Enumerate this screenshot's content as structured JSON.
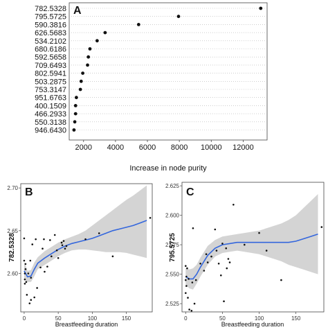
{
  "chart_data": [
    {
      "type": "scatter",
      "panel_label": "A",
      "xlabel": "Increase in node purity",
      "ylabel": "",
      "xlim": [
        1100,
        13500
      ],
      "xticks": [
        2000,
        4000,
        6000,
        8000,
        10000,
        12000
      ],
      "grid": false,
      "categories": [
        "782.5328",
        "795.5725",
        "590.3816",
        "626.5683",
        "534.2102",
        "680.6186",
        "592.5658",
        "709.6493",
        "802.5941",
        "503.2875",
        "753.3147",
        "951.6763",
        "400.1509",
        "466.2933",
        "550.3138",
        "946.6430"
      ],
      "values": [
        13100,
        7950,
        5450,
        3350,
        2850,
        2400,
        2300,
        2250,
        1950,
        1850,
        1800,
        1550,
        1500,
        1500,
        1450,
        1400
      ]
    },
    {
      "type": "scatter",
      "panel_label": "B",
      "xlabel": "Breastfeeding duration",
      "ylabel": "782.5328",
      "xlim": [
        -5,
        188
      ],
      "ylim": [
        2.555,
        2.705
      ],
      "xticks": [
        0,
        50,
        100,
        150
      ],
      "yticks": [
        2.6,
        2.65,
        2.7
      ],
      "ytick_labels": [
        "2.60",
        "2.65",
        "2.70"
      ],
      "grid": false,
      "points": [
        [
          0,
          2.641
        ],
        [
          0,
          2.615
        ],
        [
          1,
          2.6
        ],
        [
          1,
          2.593
        ],
        [
          1,
          2.588
        ],
        [
          2,
          2.611
        ],
        [
          2,
          2.605
        ],
        [
          3,
          2.59
        ],
        [
          4,
          2.575
        ],
        [
          6,
          2.6
        ],
        [
          8,
          2.565
        ],
        [
          9,
          2.615
        ],
        [
          10,
          2.595
        ],
        [
          10,
          2.569
        ],
        [
          12,
          2.634
        ],
        [
          15,
          2.572
        ],
        [
          17,
          2.64
        ],
        [
          19,
          2.583
        ],
        [
          24,
          2.607
        ],
        [
          27,
          2.629
        ],
        [
          29,
          2.64
        ],
        [
          30,
          2.602
        ],
        [
          34,
          2.608
        ],
        [
          38,
          2.639
        ],
        [
          40,
          2.62
        ],
        [
          45,
          2.645
        ],
        [
          48,
          2.627
        ],
        [
          50,
          2.618
        ],
        [
          55,
          2.636
        ],
        [
          56,
          2.633
        ],
        [
          58,
          2.638
        ],
        [
          60,
          2.629
        ],
        [
          62,
          2.632
        ],
        [
          90,
          2.64
        ],
        [
          110,
          2.647
        ],
        [
          130,
          2.62
        ],
        [
          185,
          2.665
        ]
      ],
      "smooth": [
        [
          0,
          2.603
        ],
        [
          5,
          2.596
        ],
        [
          10,
          2.597
        ],
        [
          15,
          2.605
        ],
        [
          20,
          2.612
        ],
        [
          30,
          2.618
        ],
        [
          40,
          2.623
        ],
        [
          50,
          2.628
        ],
        [
          60,
          2.632
        ],
        [
          70,
          2.635
        ],
        [
          80,
          2.637
        ],
        [
          90,
          2.639
        ],
        [
          100,
          2.641
        ],
        [
          110,
          2.644
        ],
        [
          120,
          2.647
        ],
        [
          130,
          2.65
        ],
        [
          140,
          2.652
        ],
        [
          150,
          2.654
        ],
        [
          160,
          2.656
        ],
        [
          170,
          2.659
        ],
        [
          180,
          2.662
        ]
      ],
      "ci_lower": [
        [
          0,
          2.593
        ],
        [
          5,
          2.59
        ],
        [
          10,
          2.59
        ],
        [
          15,
          2.597
        ],
        [
          20,
          2.605
        ],
        [
          30,
          2.61
        ],
        [
          40,
          2.615
        ],
        [
          50,
          2.62
        ],
        [
          60,
          2.624
        ],
        [
          70,
          2.627
        ],
        [
          80,
          2.628
        ],
        [
          90,
          2.628
        ],
        [
          100,
          2.627
        ],
        [
          110,
          2.626
        ],
        [
          120,
          2.625
        ],
        [
          130,
          2.625
        ],
        [
          140,
          2.625
        ],
        [
          150,
          2.624
        ],
        [
          160,
          2.622
        ],
        [
          170,
          2.62
        ],
        [
          180,
          2.618
        ]
      ],
      "ci_upper": [
        [
          0,
          2.614
        ],
        [
          5,
          2.603
        ],
        [
          10,
          2.604
        ],
        [
          15,
          2.613
        ],
        [
          20,
          2.619
        ],
        [
          30,
          2.626
        ],
        [
          40,
          2.631
        ],
        [
          50,
          2.636
        ],
        [
          60,
          2.64
        ],
        [
          70,
          2.643
        ],
        [
          80,
          2.646
        ],
        [
          90,
          2.65
        ],
        [
          100,
          2.656
        ],
        [
          110,
          2.662
        ],
        [
          120,
          2.668
        ],
        [
          130,
          2.674
        ],
        [
          140,
          2.68
        ],
        [
          150,
          2.686
        ],
        [
          160,
          2.691
        ],
        [
          170,
          2.697
        ],
        [
          180,
          2.703
        ]
      ]
    },
    {
      "type": "scatter",
      "panel_label": "C",
      "xlabel": "Breastfeeding duration",
      "ylabel": "795.5725",
      "xlim": [
        -5,
        188
      ],
      "ylim": [
        2.518,
        2.628
      ],
      "xticks": [
        0,
        50,
        100,
        150
      ],
      "yticks": [
        2.525,
        2.55,
        2.575,
        2.6,
        2.625
      ],
      "ytick_labels": [
        "2.525",
        "2.550",
        "2.575",
        "2.600",
        "2.625"
      ],
      "grid": false,
      "points": [
        [
          0,
          2.557
        ],
        [
          0,
          2.545
        ],
        [
          0,
          2.534
        ],
        [
          1,
          2.548
        ],
        [
          1,
          2.54
        ],
        [
          2,
          2.555
        ],
        [
          3,
          2.53
        ],
        [
          4,
          2.546
        ],
        [
          5,
          2.52
        ],
        [
          8,
          2.519
        ],
        [
          9,
          2.543
        ],
        [
          10,
          2.589
        ],
        [
          12,
          2.525
        ],
        [
          14,
          2.545
        ],
        [
          20,
          2.559
        ],
        [
          25,
          2.553
        ],
        [
          28,
          2.567
        ],
        [
          30,
          2.56
        ],
        [
          35,
          2.565
        ],
        [
          40,
          2.588
        ],
        [
          42,
          2.57
        ],
        [
          45,
          2.559
        ],
        [
          48,
          2.549
        ],
        [
          50,
          2.576
        ],
        [
          52,
          2.527
        ],
        [
          55,
          2.572
        ],
        [
          56,
          2.555
        ],
        [
          58,
          2.563
        ],
        [
          60,
          2.56
        ],
        [
          65,
          2.609
        ],
        [
          80,
          2.575
        ],
        [
          100,
          2.585
        ],
        [
          110,
          2.57
        ],
        [
          130,
          2.545
        ],
        [
          185,
          2.59
        ]
      ],
      "smooth": [
        [
          0,
          2.548
        ],
        [
          5,
          2.546
        ],
        [
          10,
          2.546
        ],
        [
          15,
          2.55
        ],
        [
          20,
          2.556
        ],
        [
          30,
          2.566
        ],
        [
          40,
          2.572
        ],
        [
          50,
          2.575
        ],
        [
          60,
          2.576
        ],
        [
          70,
          2.577
        ],
        [
          80,
          2.577
        ],
        [
          90,
          2.577
        ],
        [
          100,
          2.577
        ],
        [
          110,
          2.577
        ],
        [
          120,
          2.577
        ],
        [
          130,
          2.577
        ],
        [
          140,
          2.577
        ],
        [
          150,
          2.578
        ],
        [
          160,
          2.58
        ],
        [
          170,
          2.582
        ],
        [
          180,
          2.584
        ]
      ],
      "ci_lower": [
        [
          0,
          2.541
        ],
        [
          5,
          2.538
        ],
        [
          10,
          2.537
        ],
        [
          15,
          2.542
        ],
        [
          20,
          2.548
        ],
        [
          30,
          2.558
        ],
        [
          40,
          2.565
        ],
        [
          50,
          2.568
        ],
        [
          60,
          2.569
        ],
        [
          70,
          2.57
        ],
        [
          80,
          2.569
        ],
        [
          90,
          2.568
        ],
        [
          100,
          2.567
        ],
        [
          110,
          2.565
        ],
        [
          120,
          2.563
        ],
        [
          130,
          2.561
        ],
        [
          140,
          2.558
        ],
        [
          150,
          2.556
        ],
        [
          160,
          2.554
        ],
        [
          170,
          2.552
        ],
        [
          180,
          2.55
        ]
      ],
      "ci_upper": [
        [
          0,
          2.555
        ],
        [
          5,
          2.554
        ],
        [
          10,
          2.555
        ],
        [
          15,
          2.558
        ],
        [
          20,
          2.564
        ],
        [
          30,
          2.574
        ],
        [
          40,
          2.579
        ],
        [
          50,
          2.582
        ],
        [
          60,
          2.583
        ],
        [
          70,
          2.584
        ],
        [
          80,
          2.585
        ],
        [
          90,
          2.586
        ],
        [
          100,
          2.587
        ],
        [
          110,
          2.589
        ],
        [
          120,
          2.591
        ],
        [
          130,
          2.593
        ],
        [
          140,
          2.596
        ],
        [
          150,
          2.6
        ],
        [
          160,
          2.606
        ],
        [
          170,
          2.612
        ],
        [
          180,
          2.618
        ]
      ]
    }
  ],
  "colors": {
    "point": "#111111",
    "smooth_line": "#3366dd",
    "ci_band": "#cccccc"
  }
}
